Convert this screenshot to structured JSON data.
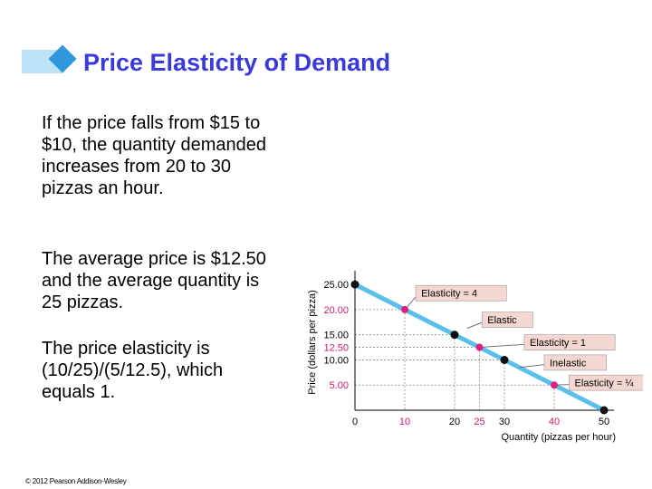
{
  "slide": {
    "title": "Price Elasticity of Demand",
    "paragraphs": [
      "If the price falls from $15 to $10, the quantity demanded increases from 20 to 30 pizzas an hour.",
      "The average price is $12.50 and the average quantity is 25 pizzas.",
      "The price elasticity is (10/25)/(5/12.5), which equals 1."
    ],
    "copyright": "© 2012 Pearson Addison-Wesley"
  },
  "colors": {
    "title": "#3a3ad6",
    "accent": "#2f97dc",
    "demand_line": "#5bbfec",
    "magenta_point": "#e0207a",
    "label_box": "#f4d7d0",
    "tick_text_pink": "#d4186c"
  },
  "chart_data": {
    "type": "line",
    "xlabel": "Quantity (pizzas per hour)",
    "ylabel": "Price (dollars per pizza)",
    "xlim": [
      0,
      52
    ],
    "ylim": [
      0,
      27
    ],
    "x_ticks": [
      {
        "value": 0,
        "label": "0",
        "highlight": false
      },
      {
        "value": 10,
        "label": "10",
        "highlight": true
      },
      {
        "value": 20,
        "label": "20",
        "highlight": false
      },
      {
        "value": 25,
        "label": "25",
        "highlight": true
      },
      {
        "value": 30,
        "label": "30",
        "highlight": false
      },
      {
        "value": 40,
        "label": "40",
        "highlight": true
      },
      {
        "value": 50,
        "label": "50",
        "highlight": false
      }
    ],
    "y_ticks": [
      {
        "value": 25,
        "label": "25.00",
        "highlight": false
      },
      {
        "value": 20,
        "label": "20.00",
        "highlight": true
      },
      {
        "value": 15,
        "label": "15.00",
        "highlight": false
      },
      {
        "value": 12.5,
        "label": "12.50",
        "highlight": true
      },
      {
        "value": 10,
        "label": "10.00",
        "highlight": false
      },
      {
        "value": 5,
        "label": "5.00",
        "highlight": true
      }
    ],
    "series": [
      {
        "x": [
          0,
          50
        ],
        "y": [
          25,
          0
        ]
      }
    ],
    "points": [
      {
        "x": 0,
        "y": 25,
        "kind": "dark"
      },
      {
        "x": 10,
        "y": 20,
        "kind": "magenta"
      },
      {
        "x": 20,
        "y": 15,
        "kind": "dark"
      },
      {
        "x": 25,
        "y": 12.5,
        "kind": "magenta"
      },
      {
        "x": 30,
        "y": 10,
        "kind": "dark"
      },
      {
        "x": 40,
        "y": 5,
        "kind": "magenta"
      },
      {
        "x": 50,
        "y": 0,
        "kind": "dark"
      }
    ],
    "annotations": [
      {
        "text": "Elasticity = 4",
        "x": 10,
        "y": 20,
        "label_x": 12.2,
        "label_y": 24.8
      },
      {
        "text": "Elastic",
        "x": 22.5,
        "y": 16.25,
        "label_x": 25.5,
        "label_y": 19.5
      },
      {
        "text": "Elasticity = 1",
        "x": 25,
        "y": 12.5,
        "label_x": 34,
        "label_y": 15
      },
      {
        "text": "Inelastic",
        "x": 33,
        "y": 8.5,
        "label_x": 38,
        "label_y": 11
      },
      {
        "text": "Elasticity = ¼",
        "x": 40,
        "y": 5,
        "label_x": 43,
        "label_y": 7
      }
    ]
  }
}
